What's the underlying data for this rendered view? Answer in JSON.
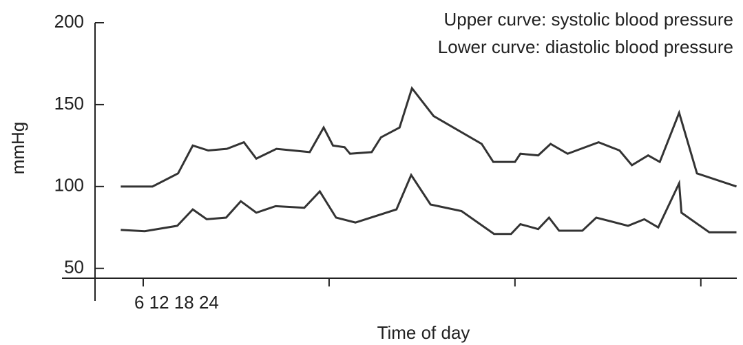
{
  "chart_data": {
    "type": "line",
    "annotations": [
      "Upper curve: systolic blood pressure",
      "Lower curve: diastolic blood pressure",
      "6 12 18 24"
    ],
    "y_label": "mmHg",
    "x_label": "Time of day",
    "xlim": [
      -6,
      77
    ],
    "xticks": [
      0,
      24,
      48,
      72
    ],
    "ylim": [
      44,
      200
    ],
    "yticks": [
      50,
      100,
      150,
      200
    ],
    "series": [
      {
        "color": "#333333",
        "x": [
          -2.9,
          1.2,
          4.5,
          6.4,
          8.4,
          10.8,
          13.0,
          14.6,
          17.2,
          21.5,
          23.3,
          24.5,
          26.0,
          26.7,
          29.5,
          30.7,
          33.1,
          34.7,
          37.5,
          43.7,
          45.2,
          48.0,
          48.7,
          51.0,
          52.6,
          54.8,
          58.8,
          61.5,
          63.1,
          65.2,
          66.7,
          69.2,
          71.5,
          76.6
        ],
        "values": [
          100,
          100,
          108,
          125,
          122,
          123,
          127,
          117,
          123,
          121,
          136,
          125,
          124,
          120,
          121,
          130,
          136,
          160,
          143,
          126,
          115,
          115,
          120,
          119,
          126,
          120,
          127,
          122,
          113,
          119,
          115,
          145,
          108,
          100
        ]
      },
      {
        "color": "#333333",
        "x": [
          -2.9,
          0.2,
          4.4,
          6.4,
          8.2,
          10.7,
          12.6,
          14.6,
          17.1,
          20.8,
          22.8,
          24.9,
          27.4,
          32.7,
          34.6,
          37.1,
          41.1,
          45.3,
          47.5,
          48.7,
          51.0,
          52.4,
          53.7,
          56.7,
          58.5,
          62.6,
          64.7,
          66.5,
          69.2,
          69.5,
          73.1,
          76.6
        ],
        "values": [
          73.5,
          72.7,
          76,
          86,
          80,
          81,
          91,
          84,
          88,
          87,
          97,
          81,
          78,
          86,
          107,
          89,
          85,
          71,
          71,
          77,
          74,
          81,
          73,
          73,
          81,
          76,
          80,
          75,
          102,
          84,
          72,
          72
        ]
      }
    ]
  }
}
